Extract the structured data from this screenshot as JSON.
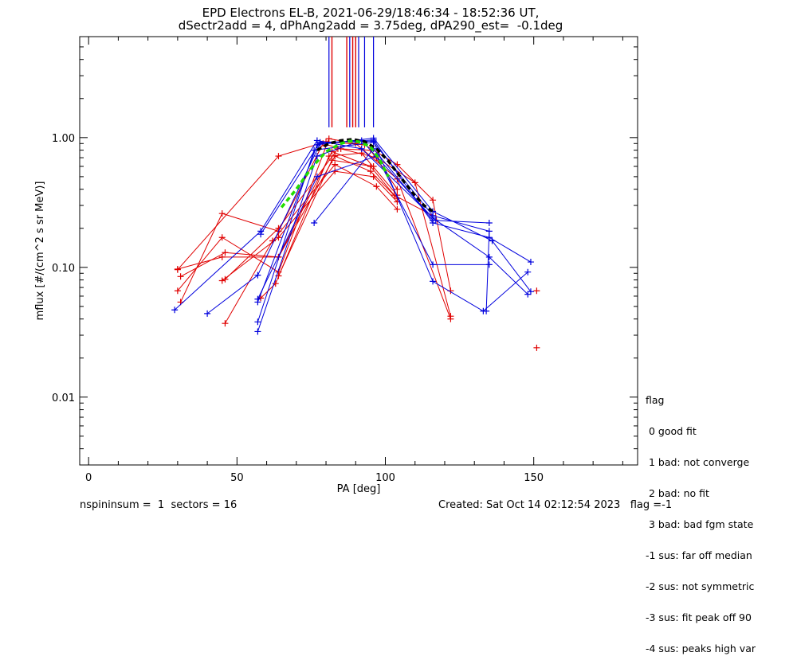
{
  "title_line1": "EPD Electrons EL-B, 2021-06-29/18:46:34 - 18:52:36 UT,",
  "title_line2": "dSectr2add = 4, dPhAng2add = 3.75deg, dPA290_est=  -0.1deg",
  "footer_left": "nspininsum =  1  sectors = 16",
  "footer_right": "Created: Sat Oct 14 02:12:54 2023   flag =-1",
  "legend": {
    "title": "flag",
    "items": [
      " 0 good fit",
      " 1 bad: not converge",
      " 2 bad: no fit",
      " 3 bad: bad fgm state",
      "-1 sus: far off median",
      "-2 sus: not symmetric",
      "-3 sus: fit peak off 90",
      "-4 sus: peaks high var"
    ]
  },
  "colors": {
    "red": "#e00000",
    "blue": "#0000dd",
    "green": "#22dd00",
    "black": "#000000"
  },
  "chart_data": {
    "type": "line",
    "xlabel": "PA [deg]",
    "ylabel": "mflux [#/(cm^2 s sr MeV)]",
    "xlim": [
      -3,
      185
    ],
    "ylim": [
      0.003,
      6
    ],
    "yscale": "log",
    "xticks": [
      0,
      50,
      100,
      150
    ],
    "xtick_labels": [
      "0",
      "50",
      "100",
      "150"
    ],
    "yticks": [
      0.01,
      0.1,
      1.0
    ],
    "ytick_labels": [
      "0.01",
      "0.10",
      "1.00"
    ],
    "red_series": [
      [
        [
          30,
          0.096
        ],
        [
          64,
          0.72
        ],
        [
          80,
          0.93
        ],
        [
          93,
          0.88
        ],
        [
          104,
          0.62
        ],
        [
          116,
          0.33
        ],
        [
          122,
          0.066
        ]
      ],
      [
        [
          31,
          0.054
        ],
        [
          45,
          0.26
        ],
        [
          64,
          0.19
        ],
        [
          79,
          0.9
        ],
        [
          85,
          0.82
        ],
        [
          97,
          0.7
        ],
        [
          110,
          0.45
        ],
        [
          122,
          0.042
        ]
      ],
      [
        [
          30,
          0.066
        ],
        [
          45,
          0.17
        ],
        [
          64,
          0.092
        ],
        [
          81,
          0.98
        ],
        [
          90,
          0.9
        ],
        [
          104,
          0.48
        ],
        [
          122,
          0.04
        ]
      ],
      [
        [
          31,
          0.085
        ],
        [
          46,
          0.13
        ],
        [
          64,
          0.12
        ],
        [
          82,
          0.78
        ],
        [
          95,
          0.6
        ],
        [
          103,
          0.36
        ],
        [
          116,
          0.25
        ]
      ],
      [
        [
          30,
          0.097
        ],
        [
          45,
          0.12
        ],
        [
          64,
          0.12
        ],
        [
          83,
          0.72
        ],
        [
          95,
          0.55
        ],
        [
          104,
          0.34
        ]
      ],
      [
        [
          45,
          0.079
        ],
        [
          64,
          0.17
        ],
        [
          83,
          0.55
        ],
        [
          96,
          0.5
        ],
        [
          104,
          0.32
        ]
      ],
      [
        [
          46,
          0.081
        ],
        [
          64,
          0.2
        ],
        [
          84,
          0.82
        ],
        [
          95,
          0.8
        ],
        [
          104,
          0.4
        ]
      ],
      [
        [
          46,
          0.037
        ],
        [
          62,
          0.16
        ],
        [
          83,
          0.62
        ],
        [
          97,
          0.42
        ],
        [
          104,
          0.28
        ]
      ],
      [
        [
          58,
          0.058
        ],
        [
          63,
          0.075
        ],
        [
          81,
          0.72
        ],
        [
          92,
          0.76
        ],
        [
          104,
          0.36
        ]
      ],
      [
        [
          64,
          0.086
        ],
        [
          82,
          0.67
        ],
        [
          96,
          0.6
        ]
      ],
      [
        [
          151,
          0.066
        ]
      ],
      [
        [
          151,
          0.024
        ]
      ]
    ],
    "blue_series": [
      [
        [
          29,
          0.047
        ],
        [
          58,
          0.19
        ],
        [
          77,
          0.95
        ],
        [
          92,
          0.82
        ],
        [
          117,
          0.23
        ],
        [
          135,
          0.22
        ]
      ],
      [
        [
          40,
          0.044
        ],
        [
          57,
          0.087
        ],
        [
          78,
          0.9
        ],
        [
          96,
          0.96
        ],
        [
          116,
          0.22
        ],
        [
          135,
          0.17
        ],
        [
          149,
          0.11
        ]
      ],
      [
        [
          57,
          0.032
        ],
        [
          77,
          0.72
        ],
        [
          92,
          0.95
        ],
        [
          116,
          0.24
        ],
        [
          135,
          0.12
        ],
        [
          148,
          0.062
        ]
      ],
      [
        [
          57,
          0.038
        ],
        [
          76,
          0.8
        ],
        [
          96,
          0.92
        ],
        [
          116,
          0.25
        ],
        [
          135,
          0.19
        ],
        [
          134,
          0.046
        ]
      ],
      [
        [
          57,
          0.054
        ],
        [
          77,
          0.88
        ],
        [
          96,
          0.99
        ],
        [
          116,
          0.27
        ],
        [
          136,
          0.16
        ],
        [
          149,
          0.065
        ]
      ],
      [
        [
          57,
          0.057
        ],
        [
          77,
          0.5
        ],
        [
          97,
          0.72
        ],
        [
          116,
          0.105
        ],
        [
          135,
          0.105
        ]
      ],
      [
        [
          58,
          0.18
        ],
        [
          78,
          0.92
        ],
        [
          96,
          0.94
        ],
        [
          116,
          0.078
        ],
        [
          133,
          0.046
        ],
        [
          148,
          0.092
        ]
      ],
      [
        [
          76,
          0.22
        ],
        [
          96,
          0.82
        ],
        [
          116,
          0.23
        ]
      ]
    ],
    "peak_markers": {
      "red_x": [
        82,
        87,
        89,
        90
      ],
      "blue_x": [
        81,
        88,
        91,
        93,
        96
      ],
      "y_range": [
        1.2,
        6
      ]
    },
    "fits": {
      "green": [
        [
          65,
          0.29
        ],
        [
          70,
          0.4
        ],
        [
          75,
          0.58
        ],
        [
          80,
          0.78
        ],
        [
          85,
          0.9
        ],
        [
          88,
          0.94
        ],
        [
          91,
          0.93
        ],
        [
          95,
          0.85
        ],
        [
          98,
          0.68
        ],
        [
          101,
          0.5
        ]
      ],
      "black": [
        [
          77,
          0.8
        ],
        [
          81,
          0.9
        ],
        [
          85,
          0.95
        ],
        [
          89,
          0.97
        ],
        [
          93,
          0.93
        ],
        [
          97,
          0.82
        ],
        [
          101,
          0.66
        ],
        [
          105,
          0.5
        ],
        [
          109,
          0.38
        ],
        [
          113,
          0.3
        ],
        [
          116,
          0.27
        ]
      ]
    }
  }
}
